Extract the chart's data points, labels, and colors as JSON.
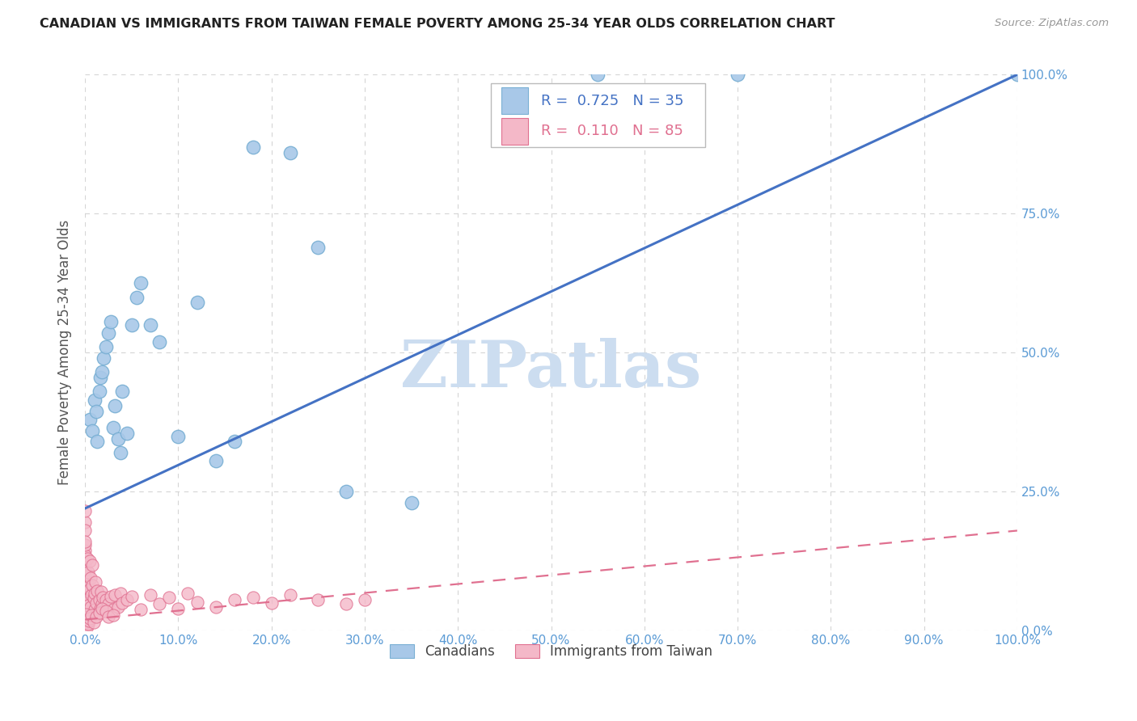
{
  "title": "CANADIAN VS IMMIGRANTS FROM TAIWAN FEMALE POVERTY AMONG 25-34 YEAR OLDS CORRELATION CHART",
  "source": "Source: ZipAtlas.com",
  "ylabel": "Female Poverty Among 25-34 Year Olds",
  "watermark": "ZIPatlas",
  "R_canadian": "0.725",
  "N_canadian": "35",
  "R_taiwan": "0.110",
  "N_taiwan": "85",
  "canadians_x": [
    0.005,
    0.008,
    0.01,
    0.012,
    0.013,
    0.015,
    0.016,
    0.018,
    0.02,
    0.022,
    0.025,
    0.028,
    0.03,
    0.032,
    0.035,
    0.038,
    0.04,
    0.045,
    0.05,
    0.055,
    0.06,
    0.07,
    0.08,
    0.1,
    0.12,
    0.14,
    0.16,
    0.18,
    0.22,
    0.25,
    0.28,
    0.35,
    0.55,
    0.7,
    1.0
  ],
  "canadians_y": [
    0.38,
    0.36,
    0.415,
    0.395,
    0.34,
    0.43,
    0.455,
    0.465,
    0.49,
    0.51,
    0.535,
    0.555,
    0.365,
    0.405,
    0.345,
    0.32,
    0.43,
    0.355,
    0.55,
    0.6,
    0.625,
    0.55,
    0.52,
    0.35,
    0.59,
    0.305,
    0.34,
    0.87,
    0.86,
    0.69,
    0.25,
    0.23,
    1.0,
    1.0,
    1.0
  ],
  "taiwan_x": [
    0.0,
    0.0,
    0.0,
    0.0,
    0.0,
    0.0,
    0.0,
    0.0,
    0.0,
    0.0,
    0.0,
    0.0,
    0.0,
    0.0,
    0.0,
    0.0,
    0.0,
    0.0,
    0.0,
    0.0,
    0.002,
    0.002,
    0.003,
    0.003,
    0.004,
    0.005,
    0.005,
    0.006,
    0.006,
    0.007,
    0.008,
    0.008,
    0.009,
    0.01,
    0.01,
    0.011,
    0.012,
    0.013,
    0.014,
    0.015,
    0.016,
    0.017,
    0.018,
    0.019,
    0.02,
    0.022,
    0.025,
    0.028,
    0.03,
    0.032,
    0.035,
    0.038,
    0.04,
    0.045,
    0.05,
    0.06,
    0.07,
    0.08,
    0.09,
    0.1,
    0.11,
    0.12,
    0.14,
    0.16,
    0.18,
    0.2,
    0.22,
    0.25,
    0.28,
    0.3,
    0.0,
    0.001,
    0.001,
    0.002,
    0.003,
    0.004,
    0.005,
    0.007,
    0.009,
    0.012,
    0.015,
    0.018,
    0.022,
    0.025,
    0.03
  ],
  "taiwan_y": [
    0.195,
    0.18,
    0.215,
    0.1,
    0.075,
    0.06,
    0.04,
    0.02,
    0.145,
    0.12,
    0.07,
    0.09,
    0.135,
    0.05,
    0.11,
    0.155,
    0.035,
    0.025,
    0.01,
    0.005,
    0.13,
    0.055,
    0.105,
    0.045,
    0.08,
    0.125,
    0.075,
    0.095,
    0.042,
    0.065,
    0.082,
    0.118,
    0.058,
    0.068,
    0.038,
    0.088,
    0.05,
    0.072,
    0.03,
    0.055,
    0.04,
    0.07,
    0.048,
    0.06,
    0.035,
    0.055,
    0.048,
    0.062,
    0.038,
    0.065,
    0.042,
    0.068,
    0.05,
    0.055,
    0.062,
    0.038,
    0.065,
    0.048,
    0.06,
    0.04,
    0.068,
    0.052,
    0.042,
    0.055,
    0.06,
    0.05,
    0.065,
    0.055,
    0.048,
    0.055,
    0.16,
    0.03,
    0.015,
    0.008,
    0.012,
    0.018,
    0.022,
    0.028,
    0.015,
    0.025,
    0.032,
    0.04,
    0.035,
    0.025,
    0.028
  ],
  "blue_line_x": [
    0.0,
    1.0
  ],
  "blue_line_y": [
    0.22,
    1.0
  ],
  "pink_line_x": [
    0.0,
    1.0
  ],
  "pink_line_y": [
    0.02,
    0.18
  ],
  "bg_color": "#ffffff",
  "grid_color": "#d5d5d5",
  "title_color": "#222222",
  "axis_tick_color": "#5b9bd5",
  "source_color": "#999999",
  "blue_fill": "#a8c8e8",
  "blue_edge": "#7ab0d4",
  "blue_line_color": "#4472c4",
  "pink_fill": "#f4b8c8",
  "pink_edge": "#e07090",
  "pink_line_color": "#e07090",
  "watermark_color": "#ccddf0",
  "xlim": [
    0.0,
    1.0
  ],
  "ylim": [
    0.0,
    1.0
  ],
  "x_ticks": [
    0.0,
    0.1,
    0.2,
    0.3,
    0.4,
    0.5,
    0.6,
    0.7,
    0.8,
    0.9,
    1.0
  ],
  "y_ticks": [
    0.0,
    0.25,
    0.5,
    0.75,
    1.0
  ]
}
